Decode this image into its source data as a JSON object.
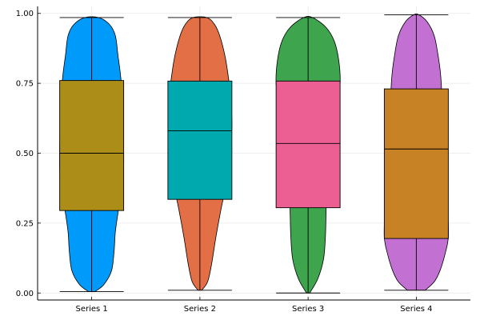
{
  "chart_data": {
    "type": "violin+box",
    "title": "",
    "xlabel": "",
    "ylabel": "",
    "ylim": [
      -0.025,
      1.025
    ],
    "yticks": [
      0.0,
      0.25,
      0.5,
      0.75,
      1.0
    ],
    "ytick_labels": [
      "0.00",
      "0.25",
      "0.50",
      "0.75",
      "1.00"
    ],
    "grid": true,
    "legend": "none",
    "categories": [
      "Series 1",
      "Series 2",
      "Series 3",
      "Series 4"
    ],
    "series": [
      {
        "violin_color": "#009AFA",
        "box_color": "#AC8D18",
        "whisker_low": 0.005,
        "q1": 0.295,
        "median": 0.5,
        "q3": 0.76,
        "whisker_high": 0.985,
        "density_profile": [
          [
            0.005,
            0.1
          ],
          [
            0.03,
            0.38
          ],
          [
            0.08,
            0.62
          ],
          [
            0.15,
            0.7
          ],
          [
            0.22,
            0.74
          ],
          [
            0.3,
            0.84
          ],
          [
            0.4,
            0.98
          ],
          [
            0.5,
            1.0
          ],
          [
            0.6,
            0.98
          ],
          [
            0.7,
            0.96
          ],
          [
            0.78,
            0.9
          ],
          [
            0.85,
            0.82
          ],
          [
            0.92,
            0.74
          ],
          [
            0.96,
            0.56
          ],
          [
            0.985,
            0.22
          ]
        ]
      },
      {
        "violin_color": "#E36F47",
        "box_color": "#00A9AD",
        "whisker_low": 0.01,
        "q1": 0.335,
        "median": 0.58,
        "q3": 0.758,
        "whisker_high": 0.985,
        "density_profile": [
          [
            0.01,
            0.06
          ],
          [
            0.04,
            0.24
          ],
          [
            0.1,
            0.36
          ],
          [
            0.2,
            0.5
          ],
          [
            0.3,
            0.66
          ],
          [
            0.4,
            0.84
          ],
          [
            0.5,
            0.96
          ],
          [
            0.6,
            1.0
          ],
          [
            0.7,
            0.96
          ],
          [
            0.78,
            0.88
          ],
          [
            0.85,
            0.78
          ],
          [
            0.92,
            0.62
          ],
          [
            0.96,
            0.46
          ],
          [
            0.985,
            0.22
          ]
        ]
      },
      {
        "violin_color": "#3EA44E",
        "box_color": "#EC5F93",
        "whisker_low": 0.0,
        "q1": 0.305,
        "median": 0.535,
        "q3": 0.758,
        "whisker_high": 0.985,
        "density_profile": [
          [
            0.0,
            0.05
          ],
          [
            0.05,
            0.3
          ],
          [
            0.12,
            0.48
          ],
          [
            0.2,
            0.54
          ],
          [
            0.28,
            0.56
          ],
          [
            0.36,
            0.58
          ],
          [
            0.45,
            0.66
          ],
          [
            0.55,
            0.76
          ],
          [
            0.65,
            0.88
          ],
          [
            0.75,
            1.0
          ],
          [
            0.83,
            0.96
          ],
          [
            0.9,
            0.82
          ],
          [
            0.95,
            0.56
          ],
          [
            0.985,
            0.14
          ]
        ]
      },
      {
        "violin_color": "#C271D2",
        "box_color": "#C68225",
        "whisker_low": 0.01,
        "q1": 0.195,
        "median": 0.515,
        "q3": 0.73,
        "whisker_high": 0.995,
        "density_profile": [
          [
            0.01,
            0.28
          ],
          [
            0.04,
            0.56
          ],
          [
            0.08,
            0.74
          ],
          [
            0.14,
            0.9
          ],
          [
            0.2,
            1.0
          ],
          [
            0.3,
            0.98
          ],
          [
            0.4,
            0.94
          ],
          [
            0.5,
            0.88
          ],
          [
            0.6,
            0.82
          ],
          [
            0.7,
            0.8
          ],
          [
            0.78,
            0.76
          ],
          [
            0.85,
            0.68
          ],
          [
            0.92,
            0.56
          ],
          [
            0.97,
            0.34
          ],
          [
            0.995,
            0.08
          ]
        ]
      }
    ]
  }
}
